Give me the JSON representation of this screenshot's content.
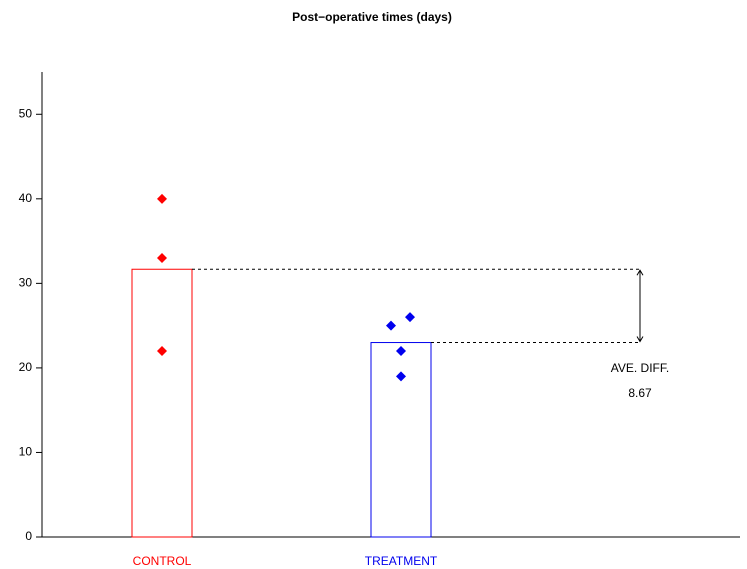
{
  "chart_data": {
    "type": "bar",
    "title": "Post−operative times (days)",
    "groups": [
      {
        "name": "CONTROL",
        "color": "#ff0000",
        "values": [
          40,
          33,
          22
        ],
        "mean": 31.67
      },
      {
        "name": "TREATMENT",
        "color": "#0000ee",
        "values": [
          25,
          26,
          22,
          19
        ],
        "mean": 23
      }
    ],
    "ylim": [
      0,
      55
    ],
    "yticks": [
      0,
      10,
      20,
      30,
      40,
      50
    ],
    "annotation": {
      "label": "AVE. DIFF.",
      "value": 8.67
    }
  }
}
